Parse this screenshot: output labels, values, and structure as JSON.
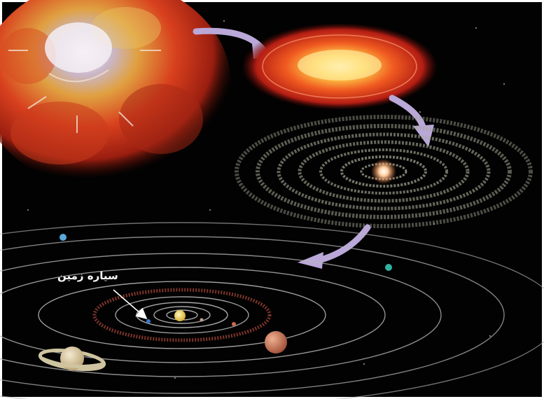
{
  "annotation": {
    "earth_label": "سیاره زمین"
  },
  "colors": {
    "space_background": "#020202",
    "nebula_red": "#c8321e",
    "disk_core": "#ffd24a",
    "orbit_line": "#b9b9b9",
    "arrow": "#b9a8d8",
    "earth": "#3a78c8",
    "mars": "#c86850",
    "saturn": "#d9c9a0"
  },
  "icons": [
    "curved-arrow-icon",
    "pointer-arrow-icon"
  ]
}
